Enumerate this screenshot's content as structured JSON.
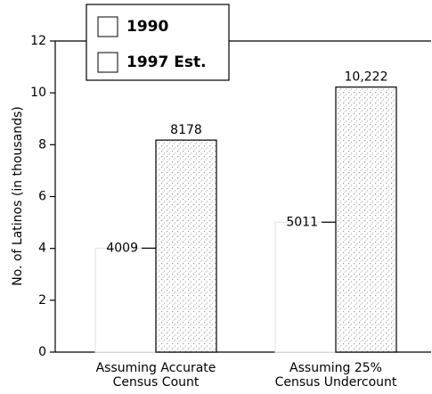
{
  "chart_data": {
    "type": "bar",
    "y_label": "No. of Latinos (in thousands)",
    "categories": [
      [
        "Assuming Accurate",
        "Census Count"
      ],
      [
        "Assuming 25%",
        "Census Undercount"
      ]
    ],
    "series": [
      {
        "name": "1990",
        "color": "#ffffff",
        "values": [
          4.009,
          5.011
        ],
        "value_labels": [
          "4009",
          "5011"
        ]
      },
      {
        "name": "1997 Est.",
        "color": "#9a9a9a",
        "values": [
          8.178,
          10.222
        ],
        "value_labels": [
          "8178",
          "10,222"
        ]
      }
    ],
    "ylim": [
      0,
      12
    ],
    "yticks": [
      0,
      2,
      4,
      6,
      8,
      10,
      12
    ],
    "legend": "upper left"
  }
}
